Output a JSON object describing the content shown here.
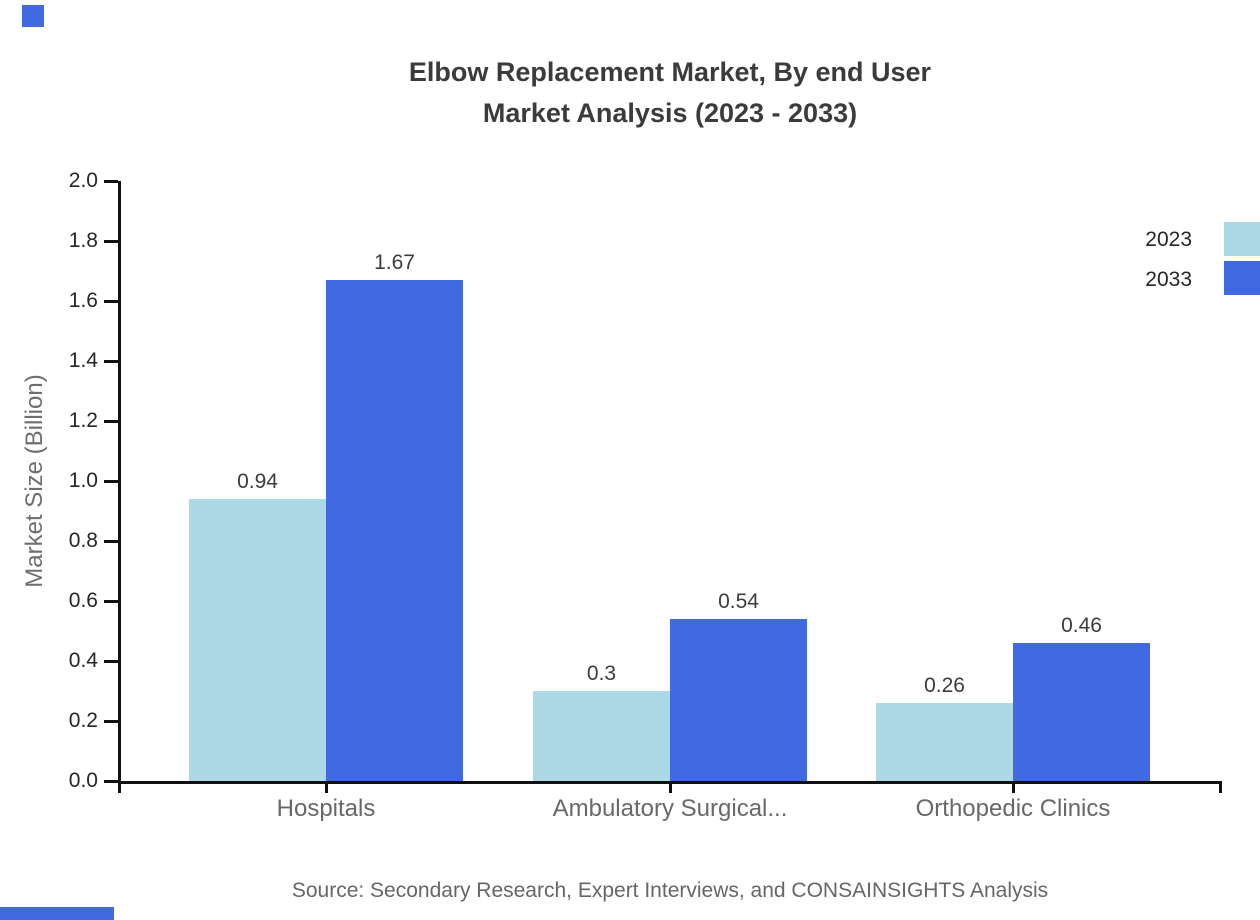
{
  "title": {
    "line1": "Elbow Replacement Market, By end User",
    "line2": "Market Analysis (2023 - 2033)"
  },
  "source": "Source: Secondary Research, Expert Interviews, and CONSAINSIGHTS Analysis",
  "legend": {
    "position": "top-right",
    "items": [
      {
        "label": "2023",
        "color": "#ADD8E6"
      },
      {
        "label": "2033",
        "color": "#4169E1"
      }
    ]
  },
  "chart_data": {
    "type": "bar",
    "categories": [
      "Hospitals",
      "Ambulatory Surgical...",
      "Orthopedic Clinics"
    ],
    "series": [
      {
        "name": "2023",
        "color": "#ADD8E6",
        "values": [
          0.94,
          0.3,
          0.26
        ]
      },
      {
        "name": "2033",
        "color": "#4169E1",
        "values": [
          1.67,
          0.54,
          0.46
        ]
      }
    ],
    "data_labels": [
      [
        "0.94",
        "0.3",
        "0.26"
      ],
      [
        "1.67",
        "0.54",
        "0.46"
      ]
    ],
    "title": "Elbow Replacement Market, By end User Market Analysis (2023 - 2033)",
    "xlabel": "",
    "ylabel": "Market Size (Billion)",
    "ylim": [
      0.0,
      2.0
    ],
    "yticks": [
      "0.0",
      "0.2",
      "0.4",
      "0.6",
      "0.8",
      "1.0",
      "1.2",
      "1.4",
      "1.6",
      "1.8",
      "2.0"
    ],
    "grid": false,
    "legend_position": "right-top"
  },
  "colors": {
    "background": "#ffffff",
    "series_2023": "#ADD8E6",
    "series_2033": "#4169E1",
    "accent": "#4169E1",
    "title_text": "#3b3b3b",
    "axis_line": "#111111",
    "tick_label": "#262626",
    "category_label": "#686868",
    "axis_title": "#6e6e6e",
    "value_label": "#3c3c3c",
    "source_text": "#666666"
  }
}
